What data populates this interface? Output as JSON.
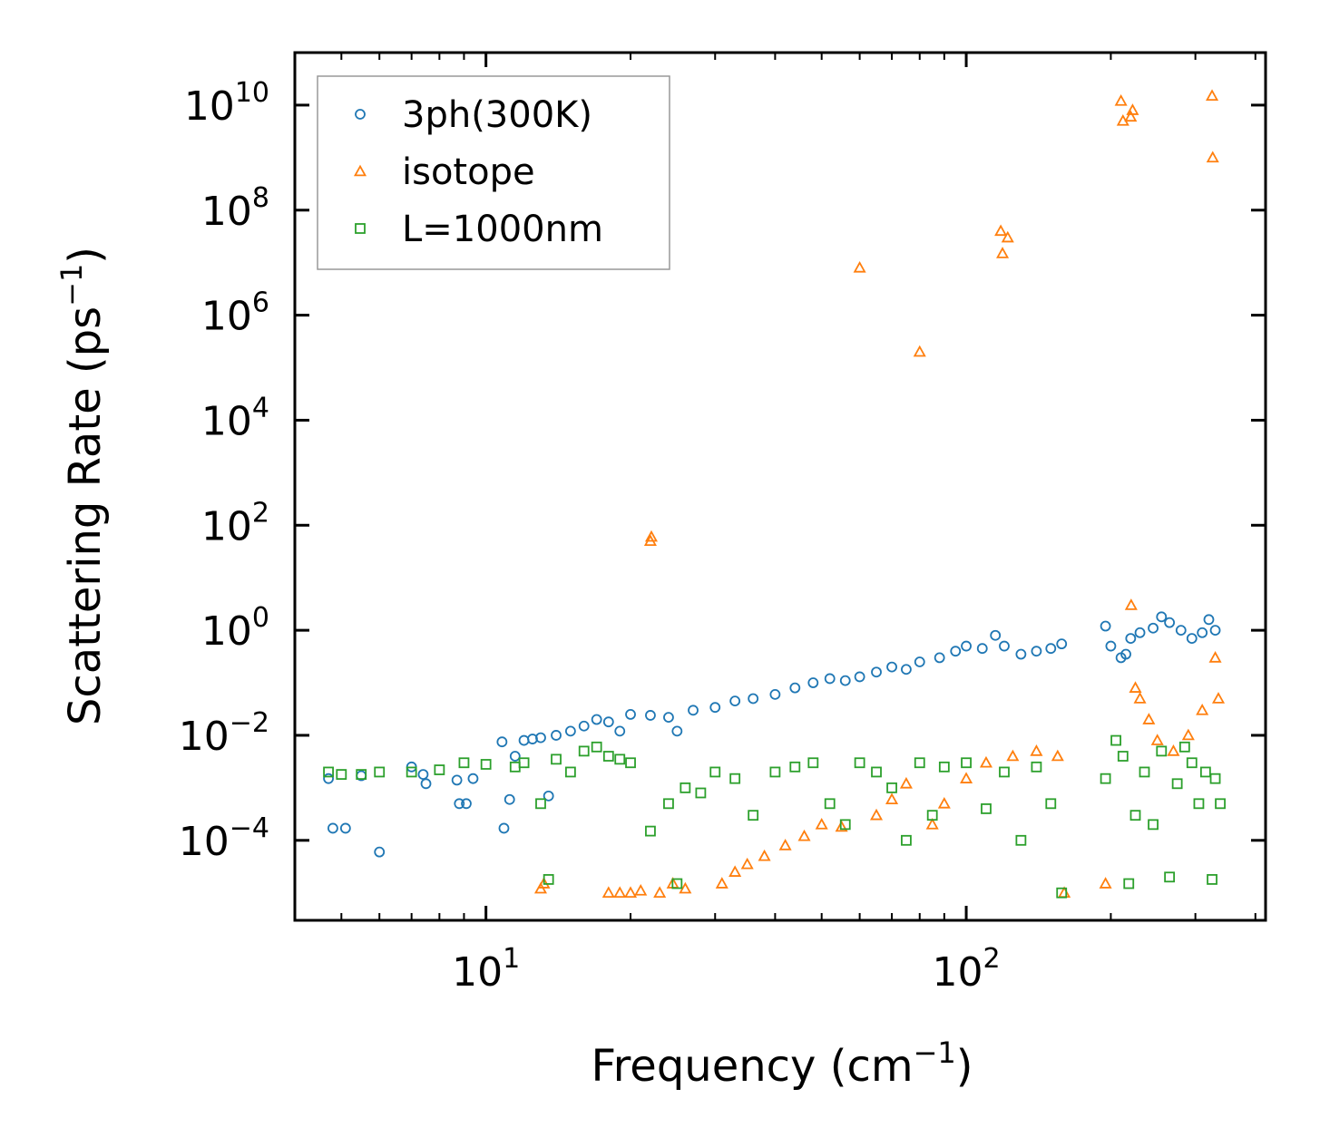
{
  "chart_data": {
    "type": "scatter",
    "title": "",
    "xlabel": "Frequency (cm",
    "xlabel_sup": "−1",
    "xlabel_end": ")",
    "ylabel": "Scattering Rate (ps",
    "ylabel_sup": "−1",
    "ylabel_end": ")",
    "xscale": "log",
    "yscale": "log",
    "xlim": [
      4.0,
      420
    ],
    "ylim": [
      3e-06,
      100000000000.0
    ],
    "xticks": [
      {
        "value": 10,
        "base": "10",
        "exp": "1"
      },
      {
        "value": 100,
        "base": "10",
        "exp": "2"
      }
    ],
    "yticks": [
      {
        "value": 0.0001,
        "base": "10",
        "exp": "−4"
      },
      {
        "value": 0.01,
        "base": "10",
        "exp": "−2"
      },
      {
        "value": 1,
        "base": "10",
        "exp": "0"
      },
      {
        "value": 100.0,
        "base": "10",
        "exp": "2"
      },
      {
        "value": 10000.0,
        "base": "10",
        "exp": "4"
      },
      {
        "value": 1000000.0,
        "base": "10",
        "exp": "6"
      },
      {
        "value": 100000000.0,
        "base": "10",
        "exp": "8"
      },
      {
        "value": 10000000000.0,
        "base": "10",
        "exp": "10"
      }
    ],
    "legend": {
      "position": "top-left"
    },
    "series": [
      {
        "name": "3ph(300K)",
        "marker": "circle",
        "color": "#1f77b4",
        "points": [
          [
            4.7,
            0.0015
          ],
          [
            4.8,
            0.00017
          ],
          [
            5.1,
            0.00017
          ],
          [
            5.5,
            0.0017
          ],
          [
            6.0,
            6e-05
          ],
          [
            7.0,
            0.0025
          ],
          [
            7.4,
            0.0018
          ],
          [
            7.5,
            0.0012
          ],
          [
            8.7,
            0.0014
          ],
          [
            8.8,
            0.0005
          ],
          [
            9.1,
            0.0005
          ],
          [
            9.4,
            0.0015
          ],
          [
            10.8,
            0.0075
          ],
          [
            10.9,
            0.00017
          ],
          [
            11.2,
            0.0006
          ],
          [
            11.5,
            0.004
          ],
          [
            12.0,
            0.008
          ],
          [
            12.5,
            0.0085
          ],
          [
            13.0,
            0.009
          ],
          [
            13.5,
            0.0007
          ],
          [
            14.0,
            0.01
          ],
          [
            15.0,
            0.012
          ],
          [
            16.0,
            0.015
          ],
          [
            17.0,
            0.02
          ],
          [
            18.0,
            0.018
          ],
          [
            19.0,
            0.012
          ],
          [
            20.0,
            0.025
          ],
          [
            22.0,
            0.024
          ],
          [
            24.0,
            0.022
          ],
          [
            25.0,
            0.012
          ],
          [
            27.0,
            0.03
          ],
          [
            30.0,
            0.034
          ],
          [
            33.0,
            0.045
          ],
          [
            36.0,
            0.05
          ],
          [
            40.0,
            0.06
          ],
          [
            44.0,
            0.08
          ],
          [
            48.0,
            0.1
          ],
          [
            52.0,
            0.12
          ],
          [
            56.0,
            0.11
          ],
          [
            60.0,
            0.13
          ],
          [
            65.0,
            0.16
          ],
          [
            70.0,
            0.2
          ],
          [
            75.0,
            0.18
          ],
          [
            80.0,
            0.25
          ],
          [
            88.0,
            0.3
          ],
          [
            95.0,
            0.4
          ],
          [
            100.0,
            0.5
          ],
          [
            108.0,
            0.45
          ],
          [
            115.0,
            0.8
          ],
          [
            120.0,
            0.5
          ],
          [
            130.0,
            0.35
          ],
          [
            140.0,
            0.4
          ],
          [
            150.0,
            0.45
          ],
          [
            158.0,
            0.55
          ],
          [
            195.0,
            1.2
          ],
          [
            200.0,
            0.5
          ],
          [
            210.0,
            0.3
          ],
          [
            215.0,
            0.35
          ],
          [
            220.0,
            0.7
          ],
          [
            230.0,
            0.9
          ],
          [
            245.0,
            1.1
          ],
          [
            255.0,
            1.8
          ],
          [
            265.0,
            1.4
          ],
          [
            280.0,
            1.0
          ],
          [
            295.0,
            0.7
          ],
          [
            310.0,
            0.9
          ],
          [
            320.0,
            1.6
          ],
          [
            330.0,
            1.0
          ]
        ]
      },
      {
        "name": "isotope",
        "marker": "triangle",
        "color": "#ff7f0e",
        "points": [
          [
            13.0,
            1.2e-05
          ],
          [
            13.2,
            1.5e-05
          ],
          [
            18.0,
            1e-05
          ],
          [
            19.0,
            1e-05
          ],
          [
            20.0,
            1e-05
          ],
          [
            21.0,
            1.1e-05
          ],
          [
            22.0,
            50
          ],
          [
            22.1,
            60
          ],
          [
            23.0,
            1e-05
          ],
          [
            24.5,
            1.5e-05
          ],
          [
            26.0,
            1.2e-05
          ],
          [
            31.0,
            1.5e-05
          ],
          [
            33.0,
            2.5e-05
          ],
          [
            35.0,
            3.5e-05
          ],
          [
            38.0,
            5e-05
          ],
          [
            42.0,
            8e-05
          ],
          [
            46.0,
            0.00012
          ],
          [
            50.0,
            0.0002
          ],
          [
            55.0,
            0.00018
          ],
          [
            60.0,
            8000000.0
          ],
          [
            65.0,
            0.0003
          ],
          [
            70.0,
            0.0006
          ],
          [
            75.0,
            0.0012
          ],
          [
            80.0,
            200000.0
          ],
          [
            85.0,
            0.0002
          ],
          [
            90.0,
            0.0005
          ],
          [
            100.0,
            0.0015
          ],
          [
            110.0,
            0.003
          ],
          [
            118.0,
            40000000.0
          ],
          [
            119.0,
            15000000.0
          ],
          [
            122.0,
            30000000.0
          ],
          [
            125.0,
            0.004
          ],
          [
            140.0,
            0.005
          ],
          [
            155.0,
            0.004
          ],
          [
            160.0,
            1e-05
          ],
          [
            195.0,
            1.5e-05
          ],
          [
            210.0,
            12000000000.0
          ],
          [
            212.0,
            5000000000.0
          ],
          [
            220.0,
            6000000000.0
          ],
          [
            222.0,
            8000000000.0
          ],
          [
            220.5,
            3.0
          ],
          [
            225.0,
            0.08
          ],
          [
            230.0,
            0.05
          ],
          [
            240.0,
            0.02
          ],
          [
            250.0,
            0.008
          ],
          [
            270.0,
            0.005
          ],
          [
            290.0,
            0.01
          ],
          [
            310.0,
            0.03
          ],
          [
            325.0,
            15000000000.0
          ],
          [
            326.0,
            1000000000.0
          ],
          [
            330.0,
            0.3
          ],
          [
            335.0,
            0.05
          ]
        ]
      },
      {
        "name": "L=1000nm",
        "marker": "square",
        "color": "#2ca02c",
        "points": [
          [
            4.7,
            0.002
          ],
          [
            5.0,
            0.0018
          ],
          [
            5.5,
            0.0018
          ],
          [
            6.0,
            0.002
          ],
          [
            7.0,
            0.002
          ],
          [
            8.0,
            0.0022
          ],
          [
            9.0,
            0.003
          ],
          [
            10.0,
            0.0028
          ],
          [
            11.5,
            0.0025
          ],
          [
            12.0,
            0.003
          ],
          [
            13.0,
            0.0005
          ],
          [
            13.5,
            1.8e-05
          ],
          [
            14.0,
            0.0035
          ],
          [
            15.0,
            0.002
          ],
          [
            16.0,
            0.005
          ],
          [
            17.0,
            0.006
          ],
          [
            18.0,
            0.004
          ],
          [
            19.0,
            0.0035
          ],
          [
            20.0,
            0.003
          ],
          [
            22.0,
            0.00015
          ],
          [
            24.0,
            0.0005
          ],
          [
            25.0,
            1.5e-05
          ],
          [
            26.0,
            0.001
          ],
          [
            28.0,
            0.0008
          ],
          [
            30.0,
            0.002
          ],
          [
            33.0,
            0.0015
          ],
          [
            36.0,
            0.0003
          ],
          [
            40.0,
            0.002
          ],
          [
            44.0,
            0.0025
          ],
          [
            48.0,
            0.003
          ],
          [
            52.0,
            0.0005
          ],
          [
            56.0,
            0.0002
          ],
          [
            60.0,
            0.003
          ],
          [
            65.0,
            0.002
          ],
          [
            70.0,
            0.001
          ],
          [
            75.0,
            0.0001
          ],
          [
            80.0,
            0.003
          ],
          [
            85.0,
            0.0003
          ],
          [
            90.0,
            0.0025
          ],
          [
            100.0,
            0.003
          ],
          [
            110.0,
            0.0004
          ],
          [
            120.0,
            0.002
          ],
          [
            130.0,
            0.0001
          ],
          [
            140.0,
            0.0025
          ],
          [
            150.0,
            0.0005
          ],
          [
            158.0,
            1e-05
          ],
          [
            195.0,
            0.0015
          ],
          [
            205.0,
            0.008
          ],
          [
            212.0,
            0.004
          ],
          [
            218.0,
            1.5e-05
          ],
          [
            225.0,
            0.0003
          ],
          [
            235.0,
            0.002
          ],
          [
            245.0,
            0.0002
          ],
          [
            255.0,
            0.005
          ],
          [
            265.0,
            2e-05
          ],
          [
            275.0,
            0.0012
          ],
          [
            285.0,
            0.006
          ],
          [
            295.0,
            0.003
          ],
          [
            305.0,
            0.0005
          ],
          [
            315.0,
            0.002
          ],
          [
            325.0,
            1.8e-05
          ],
          [
            330.0,
            0.0015
          ],
          [
            338.0,
            0.0005
          ]
        ]
      }
    ]
  }
}
